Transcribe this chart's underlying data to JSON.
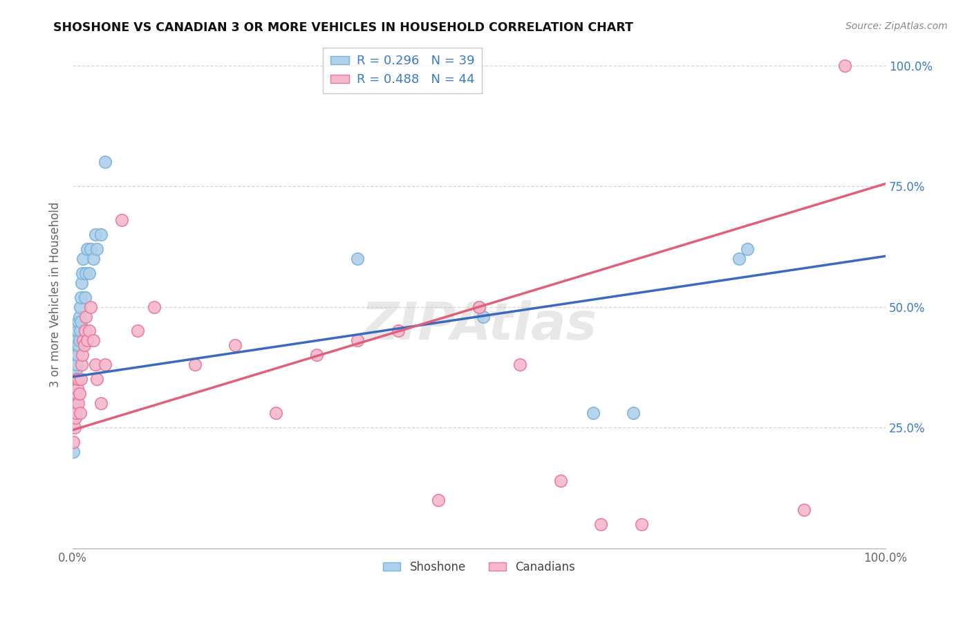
{
  "title": "SHOSHONE VS CANADIAN 3 OR MORE VEHICLES IN HOUSEHOLD CORRELATION CHART",
  "source": "Source: ZipAtlas.com",
  "ylabel": "3 or more Vehicles in Household",
  "watermark": "ZIPAtlas",
  "shoshone_color": "#7ab3d9",
  "shoshone_fill": "#aed0eb",
  "canadian_color": "#e8789a",
  "canadian_fill": "#f5b8cc",
  "blue_line_color": "#3a6abf",
  "pink_line_color": "#e0607a",
  "shoshone_R": 0.296,
  "shoshone_N": 39,
  "canadian_R": 0.488,
  "canadian_N": 44,
  "shoshone_x": [
    0.001,
    0.002,
    0.002,
    0.003,
    0.003,
    0.004,
    0.004,
    0.005,
    0.005,
    0.006,
    0.006,
    0.007,
    0.007,
    0.008,
    0.008,
    0.009,
    0.009,
    0.01,
    0.01,
    0.011,
    0.012,
    0.013,
    0.015,
    0.016,
    0.018,
    0.02,
    0.022,
    0.025,
    0.028,
    0.03,
    0.035,
    0.04,
    0.35,
    0.5,
    0.505,
    0.64,
    0.69,
    0.82,
    0.83
  ],
  "shoshone_y": [
    0.2,
    0.32,
    0.35,
    0.38,
    0.4,
    0.37,
    0.42,
    0.38,
    0.43,
    0.4,
    0.45,
    0.42,
    0.47,
    0.43,
    0.48,
    0.45,
    0.5,
    0.47,
    0.52,
    0.55,
    0.57,
    0.6,
    0.52,
    0.57,
    0.62,
    0.57,
    0.62,
    0.6,
    0.65,
    0.62,
    0.65,
    0.8,
    0.6,
    0.5,
    0.48,
    0.28,
    0.28,
    0.6,
    0.62
  ],
  "canadian_x": [
    0.001,
    0.002,
    0.003,
    0.003,
    0.004,
    0.005,
    0.005,
    0.006,
    0.007,
    0.007,
    0.008,
    0.009,
    0.01,
    0.011,
    0.012,
    0.013,
    0.014,
    0.015,
    0.016,
    0.018,
    0.02,
    0.022,
    0.025,
    0.028,
    0.03,
    0.035,
    0.04,
    0.06,
    0.08,
    0.1,
    0.15,
    0.2,
    0.25,
    0.3,
    0.35,
    0.4,
    0.45,
    0.5,
    0.55,
    0.6,
    0.65,
    0.7,
    0.9,
    0.95
  ],
  "canadian_y": [
    0.22,
    0.25,
    0.27,
    0.3,
    0.28,
    0.32,
    0.35,
    0.33,
    0.3,
    0.35,
    0.32,
    0.28,
    0.35,
    0.38,
    0.4,
    0.43,
    0.42,
    0.45,
    0.48,
    0.43,
    0.45,
    0.5,
    0.43,
    0.38,
    0.35,
    0.3,
    0.38,
    0.68,
    0.45,
    0.5,
    0.38,
    0.42,
    0.28,
    0.4,
    0.43,
    0.45,
    0.1,
    0.5,
    0.38,
    0.14,
    0.05,
    0.05,
    0.08,
    1.0
  ],
  "xlim": [
    0.0,
    1.0
  ],
  "ylim": [
    0.0,
    1.05
  ],
  "ytick_positions": [
    0.25,
    0.5,
    0.75,
    1.0
  ],
  "ytick_labels": [
    "25.0%",
    "50.0%",
    "75.0%",
    "100.0%"
  ],
  "background_color": "#ffffff",
  "grid_color": "#cccccc",
  "label_color": "#3a7acc",
  "axis_label_color": "#666666"
}
